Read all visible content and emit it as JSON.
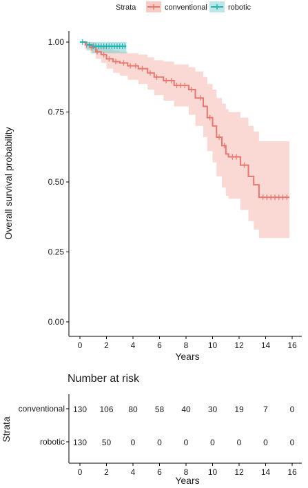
{
  "chart_data": {
    "type": "line",
    "subtype": "kaplan-meier-survival",
    "legend": {
      "title": "Strata",
      "placement": "top-center",
      "entries": [
        "conventional",
        "robotic"
      ]
    },
    "colors": {
      "conventional": "#E8766D",
      "conventional_band": "#F8CBC4",
      "robotic": "#1FB5B5",
      "robotic_band": "#7ECFCF"
    },
    "ylabel": "Overall survival probability",
    "xlabel": "Years",
    "xlim": [
      0,
      16
    ],
    "ylim": [
      0,
      1
    ],
    "xticks": [
      "0",
      "2",
      "4",
      "6",
      "8",
      "10",
      "12",
      "14",
      "16"
    ],
    "yticks": [
      "0.00",
      "0.25",
      "0.50",
      "0.75",
      "1.00"
    ],
    "grid": false,
    "series": [
      {
        "name": "conventional",
        "steps": [
          [
            0,
            1.0
          ],
          [
            0.4,
            0.99
          ],
          [
            0.8,
            0.98
          ],
          [
            1.2,
            0.965
          ],
          [
            1.6,
            0.955
          ],
          [
            2.0,
            0.94
          ],
          [
            2.5,
            0.93
          ],
          [
            3.0,
            0.925
          ],
          [
            3.6,
            0.915
          ],
          [
            4.4,
            0.905
          ],
          [
            5.1,
            0.89
          ],
          [
            5.6,
            0.875
          ],
          [
            6.3,
            0.862
          ],
          [
            7.1,
            0.845
          ],
          [
            8.2,
            0.83
          ],
          [
            8.7,
            0.8
          ],
          [
            9.3,
            0.77
          ],
          [
            9.6,
            0.73
          ],
          [
            10.0,
            0.7
          ],
          [
            10.3,
            0.66
          ],
          [
            10.7,
            0.63
          ],
          [
            11.0,
            0.6
          ],
          [
            11.2,
            0.59
          ],
          [
            12.1,
            0.56
          ],
          [
            12.7,
            0.52
          ],
          [
            13.1,
            0.49
          ],
          [
            13.5,
            0.445
          ],
          [
            15.8,
            0.445
          ]
        ],
        "lower": [
          [
            0,
            1.0
          ],
          [
            0.4,
            0.975
          ],
          [
            0.8,
            0.96
          ],
          [
            1.2,
            0.94
          ],
          [
            1.6,
            0.925
          ],
          [
            2.0,
            0.905
          ],
          [
            2.5,
            0.89
          ],
          [
            3.0,
            0.88
          ],
          [
            3.6,
            0.865
          ],
          [
            4.4,
            0.85
          ],
          [
            5.1,
            0.83
          ],
          [
            5.6,
            0.81
          ],
          [
            6.3,
            0.79
          ],
          [
            7.1,
            0.77
          ],
          [
            8.2,
            0.74
          ],
          [
            8.7,
            0.7
          ],
          [
            9.3,
            0.66
          ],
          [
            9.6,
            0.61
          ],
          [
            10.0,
            0.57
          ],
          [
            10.3,
            0.52
          ],
          [
            10.7,
            0.48
          ],
          [
            11.0,
            0.45
          ],
          [
            11.2,
            0.44
          ],
          [
            12.1,
            0.4
          ],
          [
            12.7,
            0.36
          ],
          [
            13.1,
            0.33
          ],
          [
            13.5,
            0.3
          ],
          [
            15.8,
            0.3
          ]
        ],
        "upper": [
          [
            0,
            1.0
          ],
          [
            0.4,
            1.0
          ],
          [
            0.8,
            0.998
          ],
          [
            1.2,
            0.99
          ],
          [
            1.6,
            0.985
          ],
          [
            2.0,
            0.975
          ],
          [
            2.5,
            0.97
          ],
          [
            3.0,
            0.965
          ],
          [
            3.6,
            0.96
          ],
          [
            4.4,
            0.955
          ],
          [
            5.1,
            0.945
          ],
          [
            5.6,
            0.935
          ],
          [
            6.3,
            0.93
          ],
          [
            7.1,
            0.92
          ],
          [
            8.2,
            0.91
          ],
          [
            8.7,
            0.895
          ],
          [
            9.3,
            0.875
          ],
          [
            9.6,
            0.85
          ],
          [
            10.0,
            0.83
          ],
          [
            10.3,
            0.8
          ],
          [
            10.7,
            0.78
          ],
          [
            11.0,
            0.76
          ],
          [
            11.2,
            0.75
          ],
          [
            12.1,
            0.73
          ],
          [
            12.7,
            0.7
          ],
          [
            13.1,
            0.68
          ],
          [
            13.5,
            0.645
          ],
          [
            15.8,
            0.645
          ]
        ],
        "censor_x": [
          0.5,
          0.9,
          1.3,
          1.8,
          2.2,
          2.7,
          3.3,
          3.8,
          4.2,
          4.7,
          5.3,
          5.8,
          6.5,
          6.9,
          7.3,
          7.6,
          7.9,
          8.4,
          9.1,
          9.8,
          10.5,
          10.9,
          11.5,
          11.8,
          12.4,
          13.8,
          14.1,
          14.4,
          14.7,
          15.0,
          15.3,
          15.6
        ]
      },
      {
        "name": "robotic",
        "steps": [
          [
            0,
            1.0
          ],
          [
            0.5,
            0.99
          ],
          [
            0.9,
            0.985
          ],
          [
            3.5,
            0.985
          ]
        ],
        "lower": [
          [
            0,
            1.0
          ],
          [
            0.5,
            0.97
          ],
          [
            0.9,
            0.96
          ],
          [
            3.5,
            0.96
          ]
        ],
        "upper": [
          [
            0,
            1.0
          ],
          [
            0.5,
            1.0
          ],
          [
            0.9,
            1.0
          ],
          [
            3.5,
            1.0
          ]
        ],
        "censor_x": [
          0.2,
          0.7,
          1.0,
          1.2,
          1.4,
          1.6,
          1.8,
          2.0,
          2.2,
          2.4,
          2.6,
          2.8,
          3.0,
          3.2,
          3.4
        ]
      }
    ],
    "risk_table": {
      "title": "Number at risk",
      "ylabel": "Strata",
      "xlabel": "Years",
      "xticks": [
        "0",
        "2",
        "4",
        "6",
        "8",
        "10",
        "12",
        "14",
        "16"
      ],
      "rows": [
        {
          "name": "conventional",
          "values": [
            "130",
            "106",
            "80",
            "58",
            "40",
            "30",
            "19",
            "7",
            "0"
          ]
        },
        {
          "name": "robotic",
          "values": [
            "130",
            "50",
            "0",
            "0",
            "0",
            "0",
            "0",
            "0",
            "0"
          ]
        }
      ]
    }
  }
}
